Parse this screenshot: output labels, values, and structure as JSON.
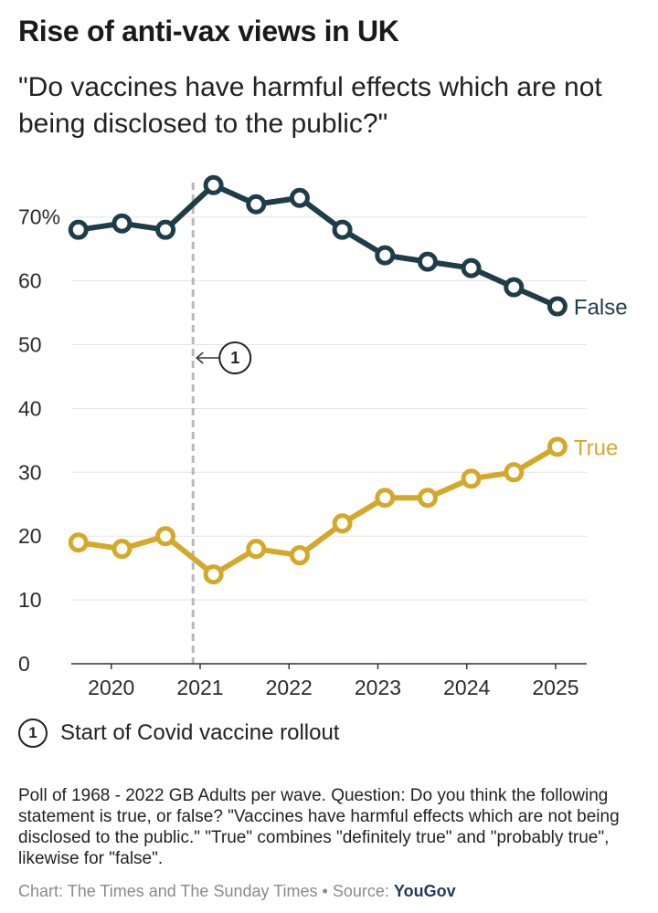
{
  "title": "Rise of anti-vax views in UK",
  "subtitle": "\"Do vaccines have harmful effects which are not being disclosed to the public?\"",
  "colors": {
    "false_series": "#1f3d48",
    "true_series": "#d4a829",
    "gridline": "#e3e3e3",
    "annotation_line": "#b8b8b8"
  },
  "chart_data": {
    "type": "line",
    "title": "Rise of anti-vax views in UK",
    "xlabel": "",
    "ylabel": "",
    "x_ticks": [
      "2020",
      "2021",
      "2022",
      "2023",
      "2024",
      "2025"
    ],
    "x_tick_values": [
      2020.0,
      2021.0,
      2022.0,
      2023.0,
      2024.0,
      2025.0
    ],
    "xlim": [
      2019.55,
      2025.35
    ],
    "y_ticks": [
      "0",
      "10",
      "20",
      "30",
      "40",
      "50",
      "60",
      "70%"
    ],
    "y_tick_values": [
      0,
      10,
      20,
      30,
      40,
      50,
      60,
      70
    ],
    "ylim": [
      0,
      76
    ],
    "grid": true,
    "x": [
      2019.63,
      2020.12,
      2020.61,
      2021.15,
      2021.63,
      2022.12,
      2022.6,
      2023.08,
      2023.56,
      2024.05,
      2024.53,
      2025.02
    ],
    "series": [
      {
        "name": "False",
        "values": [
          68,
          69,
          68,
          75,
          72,
          73,
          68,
          64,
          63,
          62,
          59,
          56
        ]
      },
      {
        "name": "True",
        "values": [
          19,
          18,
          20,
          14,
          18,
          17,
          22,
          26,
          26,
          29,
          30,
          34
        ]
      }
    ],
    "annotations": [
      {
        "number": "1",
        "x": 2020.92,
        "text": "Start of Covid vaccine rollout"
      }
    ]
  },
  "legend": {
    "number": "1",
    "text": "Start of Covid vaccine rollout"
  },
  "note": "Poll of 1968 - 2022 GB Adults per wave. Question: Do you think the following statement is true, or false? \"Vaccines have harmful effects which are not being disclosed to the public.\" \"True\" combines \"definitely true\" and \"probably true\", likewise for \"false\".",
  "credit": {
    "chart": "Chart: The Times and The Sunday Times",
    "separator": "•",
    "source_label": "Source:",
    "source_name": "YouGov"
  }
}
